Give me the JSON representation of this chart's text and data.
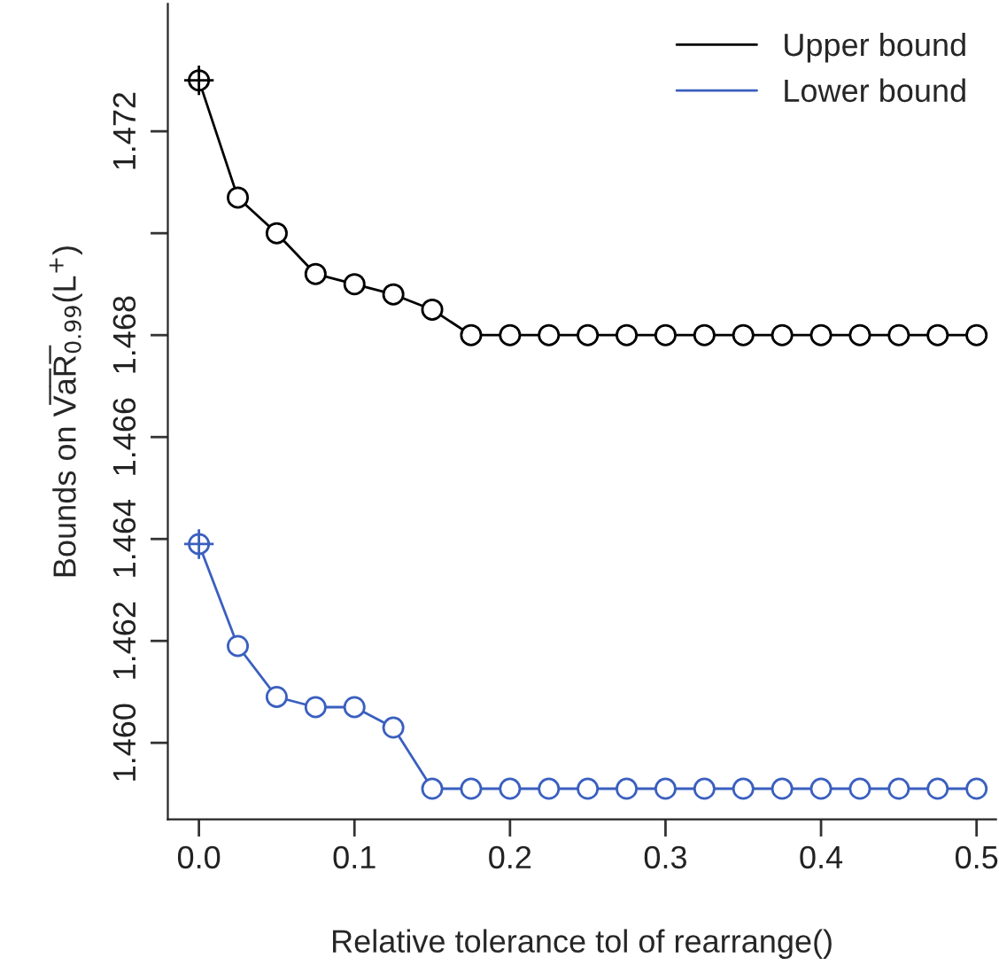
{
  "chart_data": {
    "type": "line",
    "xlabel": "Relative tolerance tol of rearrange()",
    "ylabel": "Bounds on V̅a̅R̅$_{0.99}$(L$^{+}$)",
    "x": [
      0,
      0.025,
      0.05,
      0.075,
      0.1,
      0.125,
      0.15,
      0.175,
      0.2,
      0.225,
      0.25,
      0.275,
      0.3,
      0.325,
      0.35,
      0.375,
      0.4,
      0.425,
      0.45,
      0.475,
      0.5
    ],
    "series": [
      {
        "name": "Upper bound",
        "color": "#000000",
        "values": [
          1.473,
          1.4707,
          1.47,
          1.4692,
          1.469,
          1.4688,
          1.4685,
          1.468,
          1.468,
          1.468,
          1.468,
          1.468,
          1.468,
          1.468,
          1.468,
          1.468,
          1.468,
          1.468,
          1.468,
          1.468,
          1.468
        ]
      },
      {
        "name": "Lower bound",
        "color": "#3a5fbf",
        "values": [
          1.4639,
          1.4619,
          1.4609,
          1.4607,
          1.4607,
          1.4603,
          1.4591,
          1.4591,
          1.4591,
          1.4591,
          1.4591,
          1.4591,
          1.4591,
          1.4591,
          1.4591,
          1.4591,
          1.4591,
          1.4591,
          1.4591,
          1.4591,
          1.4591
        ]
      }
    ],
    "marker": "circle",
    "line_style": "solid",
    "xlim": [
      -0.02,
      0.5125
    ],
    "ylim": [
      1.4585,
      1.4745
    ],
    "xticks": [
      {
        "value": 0,
        "label": "0.0"
      },
      0.1,
      0.2,
      0.3,
      0.4,
      0.5
    ],
    "yticks": [
      {
        "value": 1.46,
        "label": "1.460"
      },
      1.462,
      1.464,
      1.466,
      1.468,
      {
        "value": 1.47,
        "label": null
      },
      1.472
    ],
    "legend": "top right",
    "grid": false
  }
}
